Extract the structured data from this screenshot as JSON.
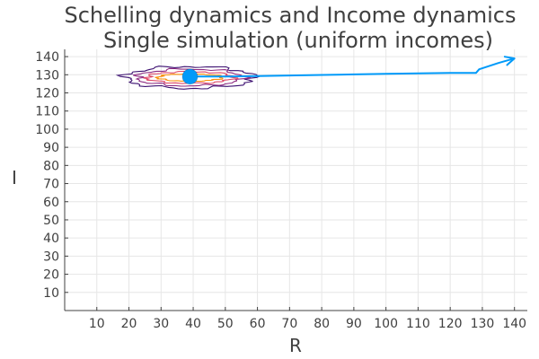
{
  "chart_data": {
    "type": "line",
    "title": "Schelling dynamics and Income dynamics",
    "subtitle": "Single simulation (uniform incomes)",
    "xlabel": "R",
    "ylabel": "I",
    "xlim": [
      0,
      144
    ],
    "ylim": [
      0,
      144
    ],
    "xticks": [
      10,
      20,
      30,
      40,
      50,
      60,
      70,
      80,
      90,
      100,
      110,
      120,
      130,
      140
    ],
    "yticks": [
      10,
      20,
      30,
      40,
      50,
      60,
      70,
      80,
      90,
      100,
      110,
      120,
      130,
      140
    ],
    "grid": true,
    "legend": "none",
    "series": [
      {
        "kind": "trajectory",
        "color": "#009af9",
        "x": [
          39,
          50,
          60,
          70,
          80,
          90,
          100,
          110,
          120,
          128,
          129,
          135,
          140
        ],
        "y": [
          129,
          129,
          129.3,
          129.6,
          129.9,
          130.2,
          130.5,
          130.8,
          131,
          131,
          133,
          136.5,
          139
        ]
      },
      {
        "kind": "start-point",
        "color": "#009af9",
        "x": [
          39
        ],
        "y": [
          129
        ]
      },
      {
        "kind": "density-contour",
        "levels": [
          {
            "color": "#3b0f70",
            "cx": 39,
            "cy": 128.5,
            "rx": 20,
            "ry": 6
          },
          {
            "color": "#8c2981",
            "cx": 39,
            "cy": 128.5,
            "rx": 16.5,
            "ry": 4.6
          },
          {
            "color": "#de4968",
            "cx": 39,
            "cy": 128.5,
            "rx": 13.5,
            "ry": 3.2
          },
          {
            "color": "#f98e09",
            "cx": 39,
            "cy": 128.5,
            "rx": 10,
            "ry": 2
          }
        ]
      }
    ]
  }
}
